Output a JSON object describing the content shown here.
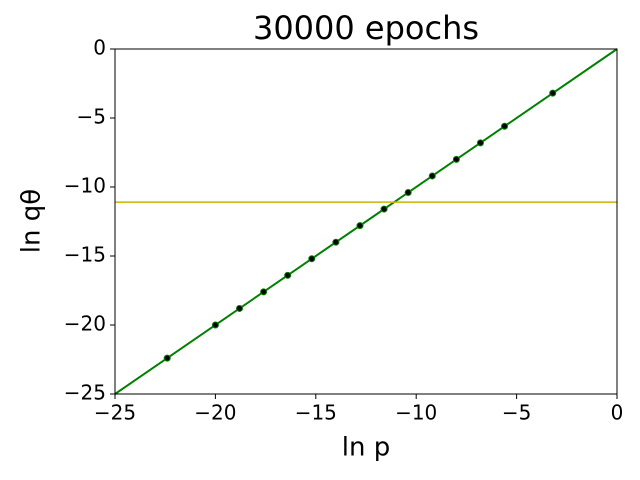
{
  "chart_data": {
    "type": "scatter",
    "title": "30000 epochs",
    "x_label": "ln p",
    "y_label": "ln qθ",
    "x": [
      -22.4,
      -20.0,
      -18.8,
      -17.6,
      -16.4,
      -15.2,
      -14.0,
      -12.8,
      -11.6,
      -10.4,
      -9.2,
      -8.0,
      -6.8,
      -5.6,
      -3.2
    ],
    "values": [
      -22.4,
      -20.0,
      -18.8,
      -17.6,
      -16.4,
      -15.2,
      -14.0,
      -12.8,
      -11.6,
      -10.4,
      -9.2,
      -8.0,
      -6.8,
      -5.6,
      -3.2
    ],
    "color": "#000000",
    "edge_color": "#008000",
    "diagonal": {
      "x": [
        -25,
        0
      ],
      "y": [
        -25,
        0
      ],
      "color": "#008000"
    },
    "hline": {
      "y": -11.1,
      "color": "#ccb400"
    },
    "xlim": [
      -25,
      0
    ],
    "ylim": [
      -25,
      0
    ],
    "xticks": [
      {
        "value": -25,
        "label": "−25"
      },
      {
        "value": -20,
        "label": "−20"
      },
      {
        "value": -15,
        "label": "−15"
      },
      {
        "value": -10,
        "label": "−10"
      },
      {
        "value": -5,
        "label": "−5"
      },
      0
    ],
    "yticks": [
      {
        "value": -25,
        "label": "−25"
      },
      {
        "value": -20,
        "label": "−20"
      },
      {
        "value": -15,
        "label": "−15"
      },
      {
        "value": -10,
        "label": "−10"
      },
      {
        "value": -5,
        "label": "−5"
      },
      0
    ],
    "grid": false
  }
}
